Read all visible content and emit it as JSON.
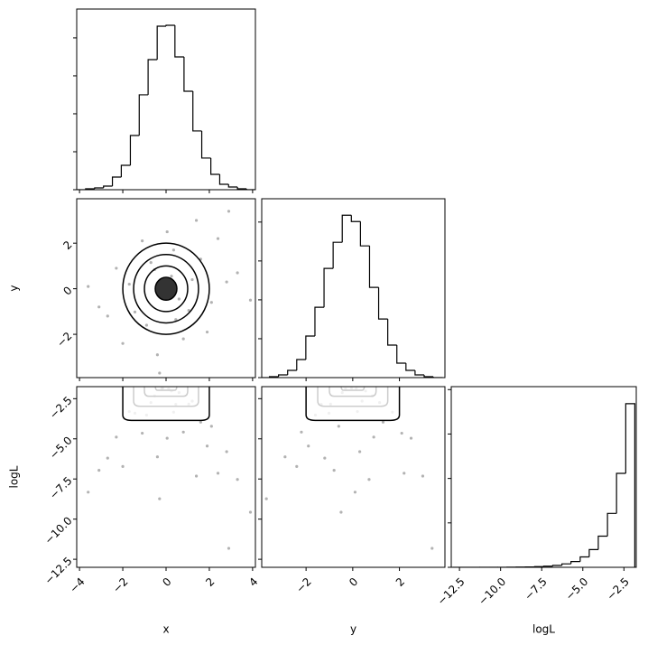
{
  "chart_data": {
    "type": "corner",
    "color": "#000000",
    "parameters": [
      {
        "name": "x",
        "lim": [
          -4.13,
          4.13
        ],
        "ticks": [
          {
            "value": -4,
            "label": "−4"
          },
          {
            "value": -2,
            "label": "−2"
          },
          0,
          2,
          4
        ]
      },
      {
        "name": "y",
        "lim": [
          -3.9,
          3.95
        ],
        "ticks": [
          {
            "value": -2,
            "label": "−2"
          },
          0,
          2
        ]
      },
      {
        "name": "logL",
        "lim": [
          -13.0,
          -1.75
        ],
        "ticks": [
          {
            "value": -2.5,
            "label": "−2.5"
          },
          {
            "value": -5,
            "label": "−5.0"
          },
          {
            "value": -7.5,
            "label": "−7.5"
          },
          {
            "value": -10,
            "label": "−10.0"
          },
          {
            "value": -12.5,
            "label": "−12.5"
          }
        ]
      }
    ],
    "histograms": [
      {
        "bins": [
          -4.13,
          -3.72,
          -3.3,
          -2.89,
          -2.48,
          -2.07,
          -1.65,
          -1.24,
          -0.83,
          -0.41,
          0,
          0.41,
          0.83,
          1.24,
          1.65,
          2.07,
          2.48,
          2.89,
          3.3,
          3.72,
          4.13
        ],
        "counts": [
          0,
          12,
          24,
          48,
          167,
          321,
          714,
          1250,
          1714,
          2154,
          2166,
          1749,
          1297,
          774,
          417,
          202,
          71,
          36,
          12,
          0
        ],
        "ylim": [
          0,
          2380
        ],
        "yticks": [
          0,
          500,
          1000,
          1500,
          2000
        ]
      },
      {
        "bins": [
          -3.96,
          -3.57,
          -3.18,
          -2.79,
          -2.4,
          -2.01,
          -1.62,
          -1.23,
          -0.84,
          -0.45,
          -0.06,
          0.33,
          0.72,
          1.11,
          1.5,
          1.89,
          2.28,
          2.67,
          3.06,
          3.45,
          3.85
        ],
        "counts": [
          0,
          12,
          35,
          93,
          232,
          534,
          905,
          1404,
          1740,
          2088,
          2007,
          1694,
          1160,
          754,
          418,
          186,
          93,
          35,
          12,
          0
        ],
        "ylim": [
          0,
          2300
        ],
        "yticks": [
          0,
          500,
          1000,
          1500,
          2000
        ]
      },
      {
        "bins": [
          -12.92,
          -12.37,
          -11.81,
          -11.26,
          -10.7,
          -10.15,
          -9.6,
          -9.04,
          -8.49,
          -7.93,
          -7.38,
          -6.83,
          -6.27,
          -5.72,
          -5.16,
          -4.61,
          -4.06,
          -3.5,
          -2.95,
          -2.39,
          -1.84
        ],
        "counts": [
          0,
          0,
          0,
          1,
          1,
          2,
          4,
          8,
          13,
          22,
          39,
          65,
          117,
          195,
          351,
          598,
          1053,
          1820,
          3172,
          5525
        ],
        "ylim": [
          0,
          6100
        ],
        "yticks": [
          0,
          1500,
          3000,
          4500,
          6000
        ]
      }
    ],
    "samples": [
      [
        0.12,
        -0.53,
        1.21,
        -1.44,
        0.35,
        2.1,
        -2.3,
        0.8,
        -0.2,
        1.6,
        -0.9,
        0.05,
        2.8,
        -3.1,
        0.6,
        -1.1,
        1.9,
        -0.4,
        -2.7,
        3.3,
        0.25,
        -1.7,
        1.05,
        -0.7,
        0.45,
        -0.15,
        2.4,
        -2.0,
        1.4,
        -3.6,
        3.9,
        -0.3,
        2.9
      ],
      [
        -0.31,
        0.84,
        0.4,
        -1.02,
        1.7,
        -0.6,
        0.9,
        -2.2,
        0.15,
        1.3,
        -1.6,
        2.5,
        0.3,
        -0.8,
        -0.45,
        2.1,
        -1.9,
        -2.9,
        -1.2,
        0.7,
        0.55,
        0.2,
        -0.95,
        1.15,
        -1.35,
        -0.05,
        2.2,
        -2.4,
        3.0,
        0.1,
        -0.5,
        -3.7,
        3.4
      ],
      [
        -1.89,
        -2.33,
        -2.65,
        -3.4,
        -3.34,
        -4.22,
        -4.89,
        -4.58,
        -1.87,
        -3.96,
        -3.52,
        -4.96,
        -5.8,
        -6.96,
        -2.12,
        -4.65,
        -5.45,
        -6.12,
        -6.2,
        -7.53,
        -2.02,
        -3.3,
        -2.84,
        -2.74,
        -2.85,
        -1.85,
        -7.14,
        -6.72,
        -7.32,
        -8.32,
        -9.57,
        -8.73,
        -11.82
      ]
    ],
    "contour_levels": [
      0.5,
      1,
      1.5,
      2
    ]
  }
}
